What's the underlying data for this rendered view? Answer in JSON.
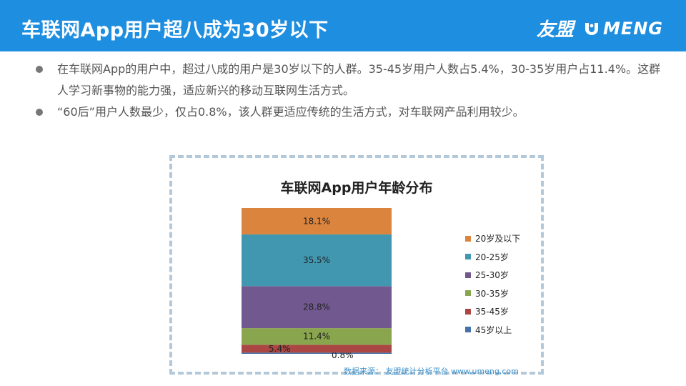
{
  "header": {
    "title": "车联网App用户超八成为30岁以下",
    "brand_cn": "友盟",
    "brand_en": "MENG"
  },
  "bullets": [
    "在车联网App的用户中，超过八成的用户是30岁以下的人群。35-45岁用户人数占5.4%，30-35岁用户占11.4%。这群人学习新事物的能力强，适应新兴的移动互联网生活方式。",
    "“60后”用户人数最少，仅占0.8%，该人群更适应传统的生活方式，对车联网产品利用较少。"
  ],
  "colors": {
    "header_bg": "#1e8ee0",
    "border": "#b3c8d8"
  },
  "chart_data": {
    "type": "bar",
    "stacked": true,
    "title": "车联网App用户年龄分布",
    "series": [
      {
        "name": "20岁及以下",
        "value": 18.1,
        "label": "18.1%",
        "color": "#db843d"
      },
      {
        "name": "20-25岁",
        "value": 35.5,
        "label": "35.5%",
        "color": "#4197b0"
      },
      {
        "name": "25-30岁",
        "value": 28.8,
        "label": "28.8%",
        "color": "#71588f"
      },
      {
        "name": "30-35岁",
        "value": 11.4,
        "label": "11.4%",
        "color": "#89a54e"
      },
      {
        "name": "35-45岁",
        "value": 5.4,
        "label": "5.4%",
        "color": "#aa4643"
      },
      {
        "name": "45岁以上",
        "value": 0.8,
        "label": "0.8%",
        "color": "#4572a7"
      }
    ],
    "legend_position": "right",
    "source": "数据来源： 友盟统计分析平台 www.umeng.com"
  }
}
